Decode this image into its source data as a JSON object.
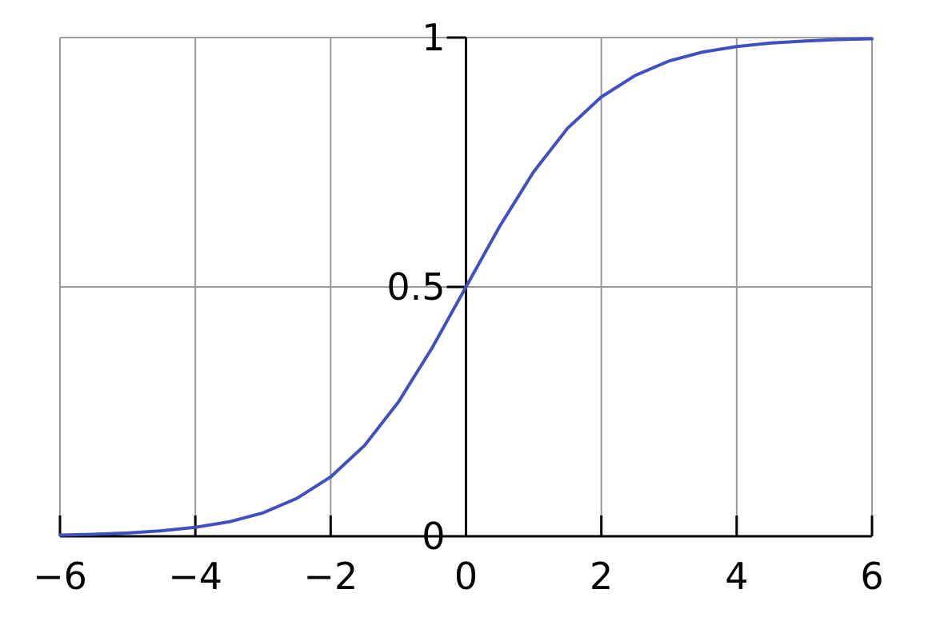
{
  "colors": {
    "curve": "#3f51c0",
    "grid": "#999999",
    "axis": "#000000",
    "background": "#ffffff"
  },
  "chart_data": {
    "type": "line",
    "title": "",
    "xlabel": "",
    "ylabel": "",
    "xlim": [
      -6,
      6
    ],
    "ylim": [
      0,
      1
    ],
    "grid": true,
    "x_ticks": [
      -6,
      -4,
      -2,
      0,
      2,
      4,
      6
    ],
    "x_tick_labels": [
      "−6",
      "−4",
      "−2",
      "0",
      "2",
      "4",
      "6"
    ],
    "y_ticks": [
      0,
      0.5,
      1
    ],
    "y_tick_labels": [
      "0",
      "0.5",
      "1"
    ],
    "series": [
      {
        "x": [
          -6,
          -5.5,
          -5,
          -4.5,
          -4,
          -3.5,
          -3,
          -2.5,
          -2,
          -1.5,
          -1,
          -0.5,
          0,
          0.5,
          1,
          1.5,
          2,
          2.5,
          3,
          3.5,
          4,
          4.5,
          5,
          5.5,
          6
        ],
        "y": [
          0.0025,
          0.0041,
          0.0067,
          0.011,
          0.018,
          0.029,
          0.047,
          0.076,
          0.119,
          0.182,
          0.269,
          0.378,
          0.5,
          0.622,
          0.731,
          0.818,
          0.881,
          0.924,
          0.953,
          0.971,
          0.982,
          0.989,
          0.993,
          0.996,
          0.9975
        ]
      }
    ]
  }
}
